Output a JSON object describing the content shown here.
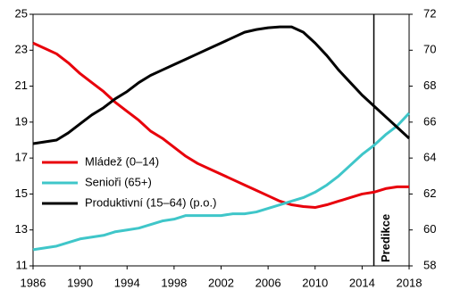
{
  "chart_data": {
    "type": "line",
    "x": [
      1986,
      1987,
      1988,
      1989,
      1990,
      1991,
      1992,
      1993,
      1994,
      1995,
      1996,
      1997,
      1998,
      1999,
      2000,
      2001,
      2002,
      2003,
      2004,
      2005,
      2006,
      2007,
      2008,
      2009,
      2010,
      2011,
      2012,
      2013,
      2014,
      2015,
      2016,
      2017,
      2018
    ],
    "series": [
      {
        "name": "Mládež (0–14)",
        "color": "#e8000b",
        "values": [
          23.4,
          23.1,
          22.8,
          22.3,
          21.7,
          21.2,
          20.7,
          20.1,
          19.6,
          19.1,
          18.5,
          18.1,
          17.6,
          17.1,
          16.7,
          16.4,
          16.1,
          15.8,
          15.5,
          15.2,
          14.9,
          14.6,
          14.4,
          14.3,
          14.25,
          14.4,
          14.6,
          14.8,
          15.0,
          15.1,
          15.3,
          15.4,
          15.4
        ]
      },
      {
        "name": "Senioři (65+)",
        "color": "#3fc6c9",
        "values": [
          11.9,
          12.0,
          12.1,
          12.3,
          12.5,
          12.6,
          12.7,
          12.9,
          13.0,
          13.1,
          13.3,
          13.5,
          13.6,
          13.8,
          13.8,
          13.8,
          13.8,
          13.9,
          13.9,
          14.0,
          14.2,
          14.4,
          14.6,
          14.8,
          15.1,
          15.5,
          16.0,
          16.6,
          17.2,
          17.7,
          18.3,
          18.8,
          19.5
        ]
      },
      {
        "name": "Produktivní (15–64) (p.o.)",
        "color": "#000000",
        "axis": "y2",
        "values": [
          64.8,
          64.9,
          65.0,
          65.4,
          65.9,
          66.4,
          66.8,
          67.3,
          67.7,
          68.2,
          68.6,
          68.9,
          69.2,
          69.5,
          69.8,
          70.1,
          70.4,
          70.7,
          71.0,
          71.15,
          71.25,
          71.3,
          71.3,
          71.0,
          70.4,
          69.7,
          68.9,
          68.2,
          67.5,
          66.9,
          66.3,
          65.7,
          65.1
        ]
      }
    ],
    "xlim": [
      1986,
      2018
    ],
    "xticks": [
      1986,
      1990,
      1994,
      1998,
      2002,
      2006,
      2010,
      2014,
      2018
    ],
    "ylim": [
      11,
      25
    ],
    "yticks": [
      11,
      13,
      15,
      17,
      19,
      21,
      23,
      25
    ],
    "y2lim": [
      58,
      72
    ],
    "y2ticks": [
      58,
      60,
      62,
      64,
      66,
      68,
      70,
      72
    ],
    "legend": "left",
    "annotations": [
      {
        "x": 2015,
        "text": "Predikce"
      }
    ]
  }
}
